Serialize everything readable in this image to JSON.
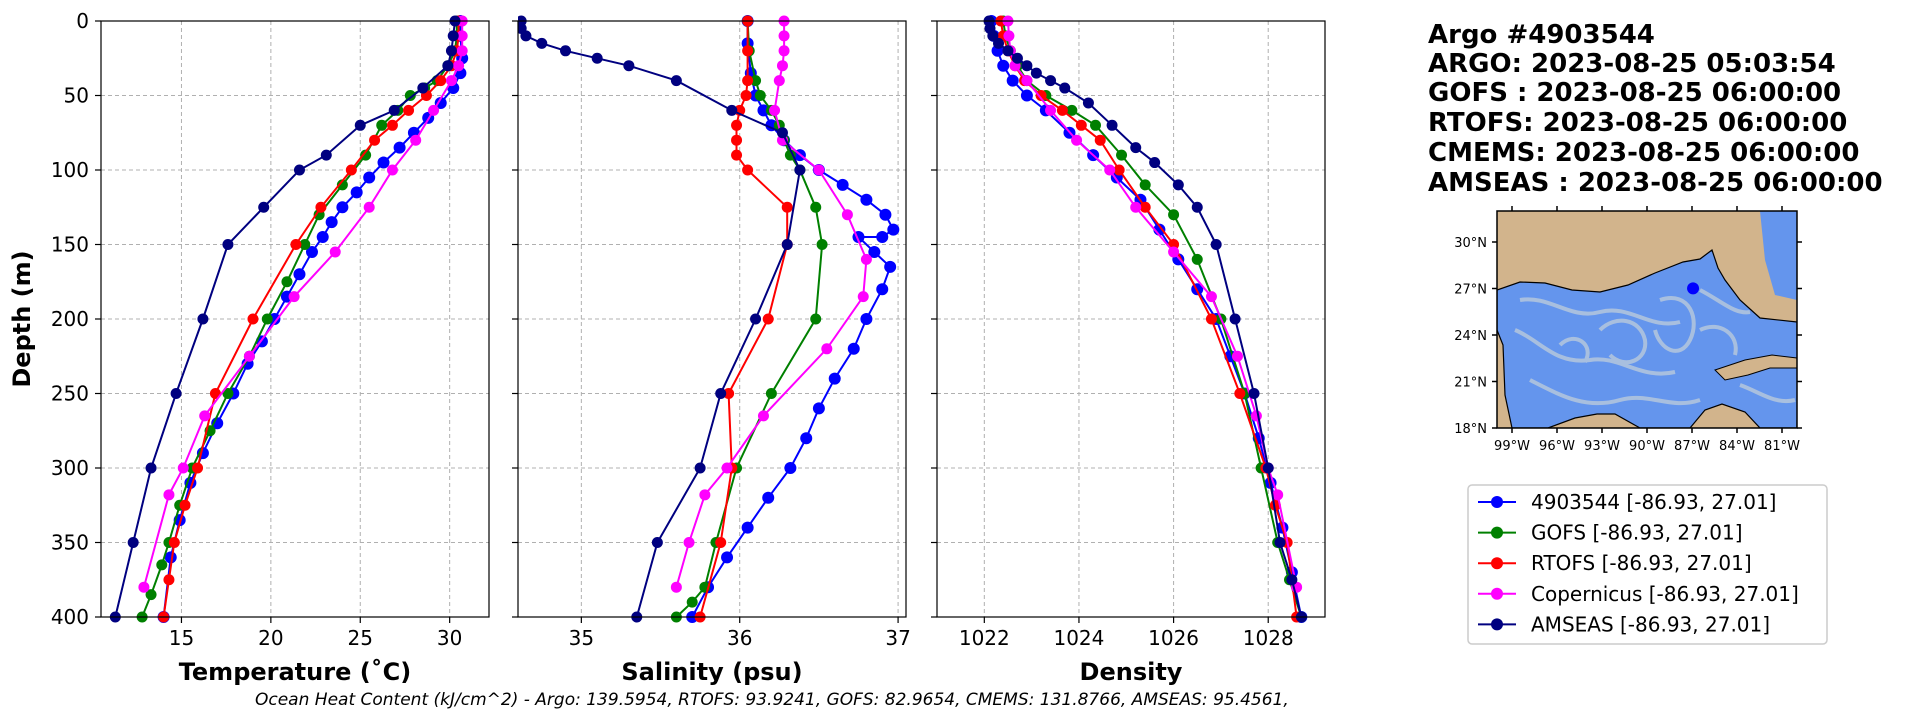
{
  "header": {
    "lines": [
      "Argo #4903544",
      "ARGO:  2023-08-25 05:03:54",
      "GOFS : 2023-08-25 06:00:00",
      "RTOFS: 2023-08-25 06:00:00",
      "CMEMS: 2023-08-25 06:00:00",
      "AMSEAS : 2023-08-25 06:00:00"
    ]
  },
  "footer": "Ocean Heat Content (kJ/cm^2) - Argo: 139.5954,  RTOFS: 93.9241,  GOFS: 82.9654,  CMEMS: 131.8766,  AMSEAS: 95.4561,",
  "map": {
    "lat_labels": [
      "30°N",
      "27°N",
      "24°N",
      "21°N",
      "18°N"
    ],
    "lon_labels": [
      "99°W",
      "96°W",
      "93°W",
      "90°W",
      "87°W",
      "84°W",
      "81°W"
    ],
    "lon_range": [
      -100,
      -80
    ],
    "lat_range": [
      18,
      32
    ],
    "float_position": [
      -86.93,
      27.01
    ],
    "colors": {
      "land": "#d2b48c",
      "ocean": "#6495ed",
      "current": "#b0c4de",
      "marker": "#0000ff"
    }
  },
  "legend": {
    "entries": [
      {
        "label": "4903544 [-86.93, 27.01]",
        "color": "#0000ff"
      },
      {
        "label": "GOFS [-86.93, 27.01]",
        "color": "#008000"
      },
      {
        "label": "RTOFS [-86.93, 27.01]",
        "color": "#ff0000"
      },
      {
        "label": "Copernicus [-86.93, 27.01]",
        "color": "#ff00ff"
      },
      {
        "label": "AMSEAS [-86.93, 27.01]",
        "color": "#000080"
      }
    ]
  },
  "chart_data": [
    {
      "type": "line",
      "xlabel": "Temperature (˚C)",
      "ylabel": "Depth (m)",
      "xlim": [
        10.5,
        32.2
      ],
      "ylim": [
        400,
        0
      ],
      "xticks": [
        15,
        20,
        25,
        30
      ],
      "yticks": [
        0,
        50,
        100,
        150,
        200,
        250,
        300,
        350,
        400
      ],
      "grid": true,
      "series": [
        {
          "name": "4903544 [-86.93, 27.01]",
          "color": "#0000ff",
          "x": [
            30.6,
            30.6,
            30.7,
            30.6,
            30.2,
            29.5,
            28.8,
            28.0,
            27.2,
            26.3,
            25.5,
            24.8,
            24.0,
            23.4,
            22.9,
            22.3,
            21.6,
            20.9,
            20.2,
            19.5,
            18.7,
            17.9,
            17.0,
            16.2,
            15.5,
            14.9,
            14.4,
            14.0
          ],
          "y": [
            0,
            10,
            25,
            35,
            45,
            55,
            65,
            75,
            85,
            95,
            105,
            115,
            125,
            135,
            145,
            155,
            170,
            185,
            200,
            215,
            230,
            250,
            270,
            290,
            310,
            335,
            360,
            400
          ]
        },
        {
          "name": "GOFS [-86.93, 27.01]",
          "color": "#008000",
          "x": [
            30.4,
            30.4,
            30.3,
            29.9,
            29.3,
            28.6,
            27.8,
            27.1,
            26.2,
            25.3,
            24.0,
            22.7,
            21.9,
            20.9,
            19.8,
            18.8,
            17.6,
            16.6,
            15.6,
            14.9,
            14.3,
            13.9,
            13.3,
            12.8
          ],
          "y": [
            0,
            10,
            20,
            30,
            40,
            45,
            50,
            60,
            70,
            90,
            110,
            130,
            150,
            175,
            200,
            225,
            250,
            275,
            300,
            325,
            350,
            365,
            385,
            400
          ]
        },
        {
          "name": "RTOFS [-86.93, 27.01]",
          "color": "#ff0000",
          "x": [
            30.5,
            30.5,
            30.4,
            30.1,
            29.5,
            28.7,
            27.7,
            26.8,
            25.8,
            24.5,
            22.8,
            21.4,
            19.0,
            16.9,
            15.9,
            15.2,
            14.6,
            14.3,
            14.0
          ],
          "y": [
            0,
            10,
            20,
            30,
            40,
            50,
            60,
            70,
            80,
            100,
            125,
            150,
            200,
            250,
            300,
            325,
            350,
            375,
            400
          ]
        },
        {
          "name": "Copernicus [-86.93, 27.01]",
          "color": "#ff00ff",
          "x": [
            30.7,
            30.7,
            30.7,
            30.5,
            30.1,
            29.1,
            28.1,
            26.8,
            25.5,
            23.6,
            21.3,
            18.8,
            16.3,
            15.1,
            14.3,
            12.9
          ],
          "y": [
            0,
            10,
            20,
            30,
            40,
            60,
            80,
            100,
            125,
            155,
            185,
            225,
            265,
            300,
            318,
            380
          ]
        },
        {
          "name": "AMSEAS [-86.93, 27.01]",
          "color": "#000080",
          "x": [
            30.3,
            30.2,
            30.1,
            29.9,
            28.5,
            26.9,
            25.0,
            23.1,
            21.6,
            19.6,
            17.6,
            16.2,
            14.7,
            13.3,
            12.3,
            11.3
          ],
          "y": [
            0,
            10,
            20,
            30,
            45,
            60,
            70,
            90,
            100,
            125,
            150,
            200,
            250,
            300,
            350,
            400
          ]
        }
      ]
    },
    {
      "type": "line",
      "xlabel": "Salinity (psu)",
      "ylabel": "",
      "xlim": [
        34.6,
        37.05
      ],
      "ylim": [
        400,
        0
      ],
      "xticks": [
        35,
        36,
        37
      ],
      "yticks": [
        0,
        50,
        100,
        150,
        200,
        250,
        300,
        350,
        400
      ],
      "grid": true,
      "series": [
        {
          "name": "4903544 [-86.93, 27.01]",
          "color": "#0000ff",
          "x": [
            36.05,
            36.05,
            36.07,
            36.1,
            36.15,
            36.2,
            36.28,
            36.38,
            36.5,
            36.65,
            36.8,
            36.92,
            36.97,
            36.9,
            36.75,
            36.85,
            36.95,
            36.9,
            36.8,
            36.72,
            36.6,
            36.5,
            36.42,
            36.32,
            36.18,
            36.05,
            35.92,
            35.8,
            35.7
          ],
          "y": [
            0,
            15,
            35,
            50,
            60,
            70,
            80,
            90,
            100,
            110,
            120,
            130,
            140,
            145,
            145,
            155,
            165,
            180,
            200,
            220,
            240,
            260,
            280,
            300,
            320,
            340,
            360,
            380,
            400
          ]
        },
        {
          "name": "GOFS [-86.93, 27.01]",
          "color": "#008000",
          "x": [
            36.05,
            36.06,
            36.1,
            36.13,
            36.2,
            36.25,
            36.28,
            36.32,
            36.38,
            36.48,
            36.52,
            36.48,
            36.2,
            35.98,
            35.85,
            35.78,
            35.7,
            35.6
          ],
          "y": [
            0,
            20,
            40,
            50,
            60,
            70,
            80,
            90,
            100,
            125,
            150,
            200,
            250,
            300,
            350,
            380,
            390,
            400
          ]
        },
        {
          "name": "RTOFS [-86.93, 27.01]",
          "color": "#ff0000",
          "x": [
            36.05,
            36.05,
            36.05,
            36.04,
            36.0,
            35.98,
            35.98,
            35.98,
            36.05,
            36.3,
            36.3,
            36.18,
            35.93,
            35.95,
            35.88,
            35.75
          ],
          "y": [
            0,
            20,
            40,
            50,
            60,
            70,
            80,
            90,
            100,
            125,
            150,
            200,
            250,
            300,
            350,
            400
          ]
        },
        {
          "name": "Copernicus [-86.93, 27.01]",
          "color": "#ff00ff",
          "x": [
            36.28,
            36.28,
            36.28,
            36.27,
            36.25,
            36.22,
            36.27,
            36.5,
            36.68,
            36.8,
            36.78,
            36.55,
            36.15,
            35.92,
            35.78,
            35.68,
            35.6
          ],
          "y": [
            0,
            10,
            20,
            30,
            40,
            60,
            80,
            100,
            130,
            160,
            185,
            220,
            265,
            300,
            318,
            350,
            380
          ]
        },
        {
          "name": "AMSEAS [-86.93, 27.01]",
          "color": "#000080",
          "x": [
            34.62,
            34.62,
            34.65,
            34.75,
            34.9,
            35.1,
            35.3,
            35.6,
            35.95,
            36.27,
            36.38,
            36.3,
            36.1,
            35.88,
            35.75,
            35.48,
            35.35
          ],
          "y": [
            0,
            5,
            10,
            15,
            20,
            25,
            30,
            40,
            60,
            75,
            100,
            150,
            200,
            250,
            300,
            350,
            400
          ]
        }
      ]
    },
    {
      "type": "line",
      "xlabel": "Density",
      "ylabel": "",
      "xlim": [
        1021.0,
        1029.2
      ],
      "ylim": [
        400,
        0
      ],
      "xticks": [
        1022,
        1024,
        1026,
        1028
      ],
      "yticks": [
        0,
        50,
        100,
        150,
        200,
        250,
        300,
        350,
        400
      ],
      "grid": true,
      "series": [
        {
          "name": "4903544 [-86.93, 27.01]",
          "color": "#0000ff",
          "x": [
            1022.15,
            1022.2,
            1022.28,
            1022.4,
            1022.6,
            1022.9,
            1023.3,
            1023.8,
            1024.3,
            1024.8,
            1025.3,
            1025.7,
            1026.1,
            1026.5,
            1026.9,
            1027.2,
            1027.5,
            1027.8,
            1028.05,
            1028.3,
            1028.5,
            1028.7
          ],
          "y": [
            0,
            10,
            20,
            30,
            40,
            50,
            60,
            75,
            90,
            105,
            120,
            140,
            160,
            180,
            200,
            225,
            250,
            280,
            310,
            340,
            370,
            400
          ]
        },
        {
          "name": "GOFS [-86.93, 27.01]",
          "color": "#008000",
          "x": [
            1022.4,
            1022.45,
            1022.55,
            1022.7,
            1022.9,
            1023.3,
            1023.85,
            1024.35,
            1024.9,
            1025.4,
            1026.0,
            1026.5,
            1027.0,
            1027.5,
            1027.85,
            1028.2,
            1028.45,
            1028.7
          ],
          "y": [
            0,
            10,
            20,
            30,
            40,
            50,
            60,
            70,
            90,
            110,
            130,
            160,
            200,
            250,
            300,
            350,
            375,
            400
          ]
        },
        {
          "name": "RTOFS [-86.93, 27.01]",
          "color": "#ff0000",
          "x": [
            1022.35,
            1022.4,
            1022.5,
            1022.65,
            1022.85,
            1023.2,
            1023.65,
            1024.05,
            1024.45,
            1024.85,
            1025.4,
            1026.0,
            1026.8,
            1027.4,
            1027.95,
            1028.15,
            1028.4,
            1028.6
          ],
          "y": [
            0,
            10,
            20,
            30,
            40,
            50,
            60,
            70,
            80,
            100,
            125,
            150,
            200,
            250,
            300,
            325,
            350,
            400
          ]
        },
        {
          "name": "Copernicus [-86.93, 27.01]",
          "color": "#ff00ff",
          "x": [
            1022.5,
            1022.52,
            1022.55,
            1022.65,
            1022.9,
            1023.4,
            1023.95,
            1024.65,
            1025.2,
            1026.0,
            1026.8,
            1027.35,
            1027.75,
            1028.0,
            1028.2,
            1028.6
          ],
          "y": [
            0,
            10,
            20,
            30,
            40,
            60,
            80,
            100,
            125,
            155,
            185,
            225,
            265,
            300,
            318,
            380
          ]
        },
        {
          "name": "AMSEAS [-86.93, 27.01]",
          "color": "#000080",
          "x": [
            1022.1,
            1022.12,
            1022.18,
            1022.3,
            1022.5,
            1022.7,
            1022.9,
            1023.1,
            1023.4,
            1023.7,
            1024.2,
            1024.7,
            1025.2,
            1025.6,
            1026.1,
            1026.5,
            1026.9,
            1027.3,
            1027.7,
            1028.0,
            1028.25,
            1028.5,
            1028.7
          ],
          "y": [
            0,
            5,
            10,
            15,
            20,
            25,
            30,
            35,
            40,
            45,
            55,
            70,
            85,
            95,
            110,
            125,
            150,
            200,
            250,
            300,
            350,
            375,
            400
          ]
        }
      ]
    }
  ]
}
